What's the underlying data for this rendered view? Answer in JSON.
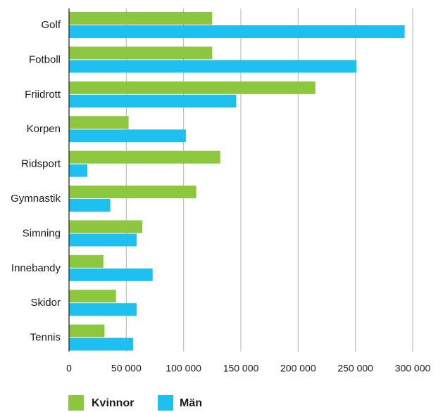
{
  "chart_data": {
    "type": "bar",
    "orientation": "horizontal",
    "categories": [
      "Golf",
      "Fotboll",
      "Friidrott",
      "Korpen",
      "Ridsport",
      "Gymnastik",
      "Simning",
      "Innebandy",
      "Skidor",
      "Tennis"
    ],
    "series": [
      {
        "name": "Kvinnor",
        "color": "#8dc63f",
        "values": [
          125000,
          125000,
          215000,
          52000,
          132000,
          111000,
          64000,
          30000,
          41000,
          31000
        ]
      },
      {
        "name": "Män",
        "color": "#1ec0f0",
        "values": [
          293000,
          251000,
          146000,
          102000,
          16000,
          36000,
          59000,
          73000,
          59000,
          56000
        ]
      }
    ],
    "xlim": [
      0,
      300000
    ],
    "xticks": [
      0,
      50000,
      100000,
      150000,
      200000,
      250000,
      300000
    ],
    "xtick_labels": [
      "0",
      "50 000",
      "100 000",
      "150 000",
      "200 000",
      "250 000",
      "300 000"
    ],
    "grid": "vertical",
    "legend_position": "bottom-left",
    "title": "",
    "xlabel": "",
    "ylabel": ""
  }
}
